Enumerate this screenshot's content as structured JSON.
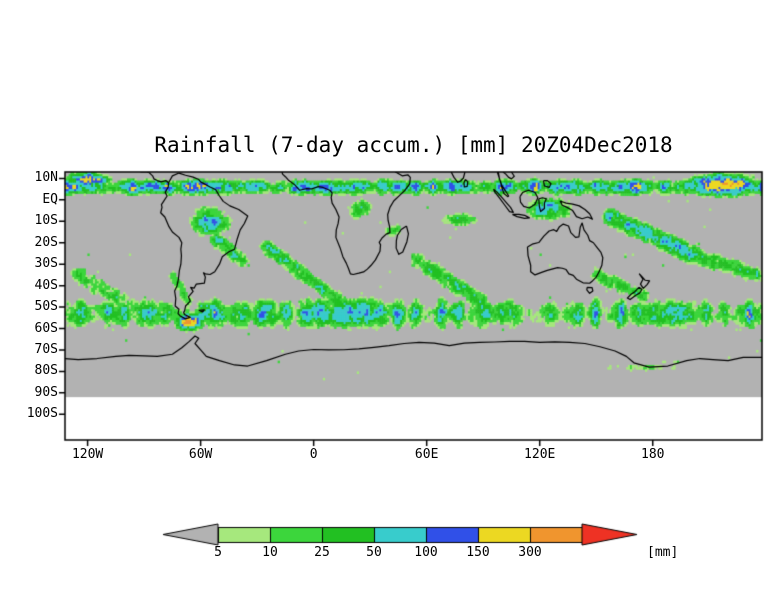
{
  "title": "Rainfall (7-day accum.) [mm] 20Z04Dec2018",
  "legend": {
    "labels": [
      "5",
      "10",
      "25",
      "50",
      "100",
      "150",
      "300"
    ],
    "unit": "[mm]"
  },
  "chart_data": {
    "type": "heatmap",
    "title": "Rainfall (7-day accum.) [mm] 20Z04Dec2018",
    "units": "mm",
    "lat_ticks": [
      {
        "label": "10N",
        "value": 10
      },
      {
        "label": "EQ",
        "value": 0
      },
      {
        "label": "10S",
        "value": -10
      },
      {
        "label": "20S",
        "value": -20
      },
      {
        "label": "30S",
        "value": -30
      },
      {
        "label": "40S",
        "value": -40
      },
      {
        "label": "50S",
        "value": -50
      },
      {
        "label": "60S",
        "value": -60
      },
      {
        "label": "70S",
        "value": -70
      },
      {
        "label": "80S",
        "value": -80
      },
      {
        "label": "90S",
        "value": -90
      },
      {
        "label": "100S",
        "value": -100
      }
    ],
    "lon_ticks": [
      {
        "label": "120W",
        "value": -120
      },
      {
        "label": "60W",
        "value": -60
      },
      {
        "label": "0",
        "value": 0
      },
      {
        "label": "60E",
        "value": 60
      },
      {
        "label": "120E",
        "value": 120
      },
      {
        "label": "180",
        "value": 180
      }
    ],
    "lat_range": [
      13,
      -112
    ],
    "lon_range": [
      -132,
      238
    ],
    "shaded_lat_min": -92,
    "levels_mm": [
      5,
      10,
      25,
      50,
      100,
      150,
      300
    ],
    "colors": {
      "below_min": "#b2b2b2",
      "bins": [
        "#a6e87d",
        "#3cd63c",
        "#22c022",
        "#38cccc",
        "#3050e8",
        "#ecd822",
        "#f0952e"
      ],
      "over_max": "#ee3224",
      "coastline": "#000000",
      "frame": "#000000"
    },
    "rain_features": [
      {
        "kind": "band",
        "lat": 6,
        "sigma": 4.5,
        "amp": 1.15
      },
      {
        "kind": "band",
        "lat": -53,
        "sigma": 9,
        "amp": 0.95
      },
      {
        "kind": "blob",
        "lon": -120,
        "lat": 9,
        "slon": 14,
        "slat": 5,
        "amp": 1.3
      },
      {
        "kind": "blob",
        "lon": 218,
        "lat": 7,
        "slon": 22,
        "slat": 6,
        "amp": 1.5
      },
      {
        "kind": "blob",
        "lon": -55,
        "lat": -10,
        "slon": 14,
        "slat": 9,
        "amp": 1.0
      },
      {
        "kind": "blob",
        "lon": 24,
        "lat": -4,
        "slon": 11,
        "slat": 7,
        "amp": 0.8
      },
      {
        "kind": "blob",
        "lon": 42,
        "lat": -14,
        "slon": 8,
        "slat": 6,
        "amp": 0.7
      },
      {
        "kind": "blob",
        "lon": 78,
        "lat": -9,
        "slon": 16,
        "slat": 5,
        "amp": 0.75
      },
      {
        "kind": "blob",
        "lon": 125,
        "lat": -4,
        "slon": 16,
        "slat": 7,
        "amp": 1.0
      },
      {
        "kind": "blob",
        "lon": -66,
        "lat": -57,
        "slon": 9,
        "slat": 4.5,
        "amp": 1.5
      },
      {
        "kind": "blob",
        "lon": 175,
        "lat": -78,
        "slon": 38,
        "slat": 3.5,
        "amp": 0.6
      },
      {
        "kind": "streak",
        "lon1": -52,
        "lat1": -18,
        "lon2": -38,
        "lat2": -28,
        "sigma": 5,
        "amp": 0.85
      },
      {
        "kind": "streak",
        "lon1": 158,
        "lat1": -8,
        "lon2": 200,
        "lat2": -25,
        "sigma": 6,
        "amp": 0.95
      },
      {
        "kind": "streak",
        "lon1": 200,
        "lat1": -25,
        "lon2": 235,
        "lat2": -35,
        "sigma": 6,
        "amp": 0.8
      },
      {
        "kind": "streak",
        "lon1": -25,
        "lat1": -22,
        "lon2": 12,
        "lat2": -46,
        "sigma": 5,
        "amp": 0.85
      },
      {
        "kind": "streak",
        "lon1": 55,
        "lat1": -28,
        "lon2": 90,
        "lat2": -48,
        "sigma": 6,
        "amp": 0.8
      },
      {
        "kind": "streak",
        "lon1": 150,
        "lat1": -35,
        "lon2": 175,
        "lat2": -45,
        "sigma": 5,
        "amp": 0.8
      },
      {
        "kind": "streak",
        "lon1": -125,
        "lat1": -35,
        "lon2": -95,
        "lat2": -50,
        "sigma": 6,
        "amp": 0.75
      },
      {
        "kind": "streak",
        "lon1": -75,
        "lat1": -35,
        "lon2": -66,
        "lat2": -48,
        "sigma": 4,
        "amp": 0.7
      }
    ]
  }
}
